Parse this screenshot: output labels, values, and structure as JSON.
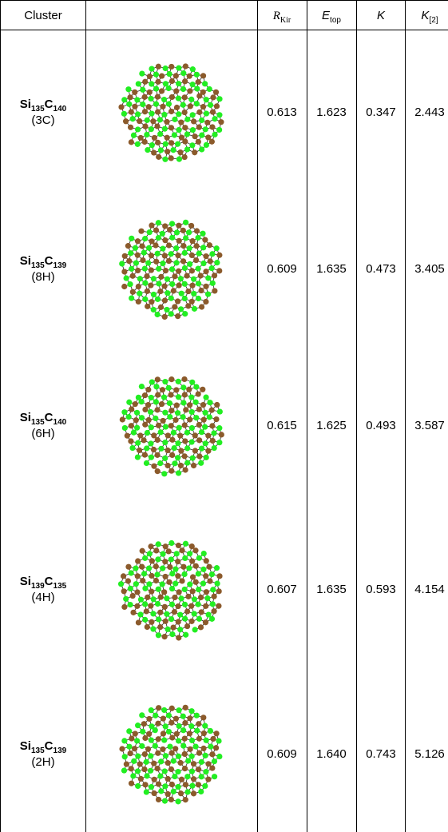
{
  "header": {
    "cluster": "Cluster",
    "r_kir": {
      "symbol": "R",
      "sub": "Kir"
    },
    "e_top": {
      "symbol": "E",
      "sub": "top"
    },
    "k": "K",
    "k2": {
      "symbol": "K",
      "sub": "[2]"
    }
  },
  "rows": [
    {
      "cluster": {
        "si": "Si",
        "si_count": "135",
        "c": "C",
        "c_count": "140",
        "polytype": "(3C)"
      },
      "r_kir": "0.613",
      "e_top": "1.623",
      "k": "0.347",
      "k2": "2.443"
    },
    {
      "cluster": {
        "si": "Si",
        "si_count": "135",
        "c": "C",
        "c_count": "139",
        "polytype": "(8H)"
      },
      "r_kir": "0.609",
      "e_top": "1.635",
      "k": "0.473",
      "k2": "3.405"
    },
    {
      "cluster": {
        "si": "Si",
        "si_count": "135",
        "c": "C",
        "c_count": "140",
        "polytype": "(6H)"
      },
      "r_kir": "0.615",
      "e_top": "1.625",
      "k": "0.493",
      "k2": "3.587"
    },
    {
      "cluster": {
        "si": "Si",
        "si_count": "139",
        "c": "C",
        "c_count": "135",
        "polytype": "(4H)"
      },
      "r_kir": "0.607",
      "e_top": "1.635",
      "k": "0.593",
      "k2": "4.154"
    },
    {
      "cluster": {
        "si": "Si",
        "si_count": "135",
        "c": "C",
        "c_count": "139",
        "polytype": "(2H)"
      },
      "r_kir": "0.609",
      "e_top": "1.640",
      "k": "0.743",
      "k2": "5.126"
    }
  ]
}
